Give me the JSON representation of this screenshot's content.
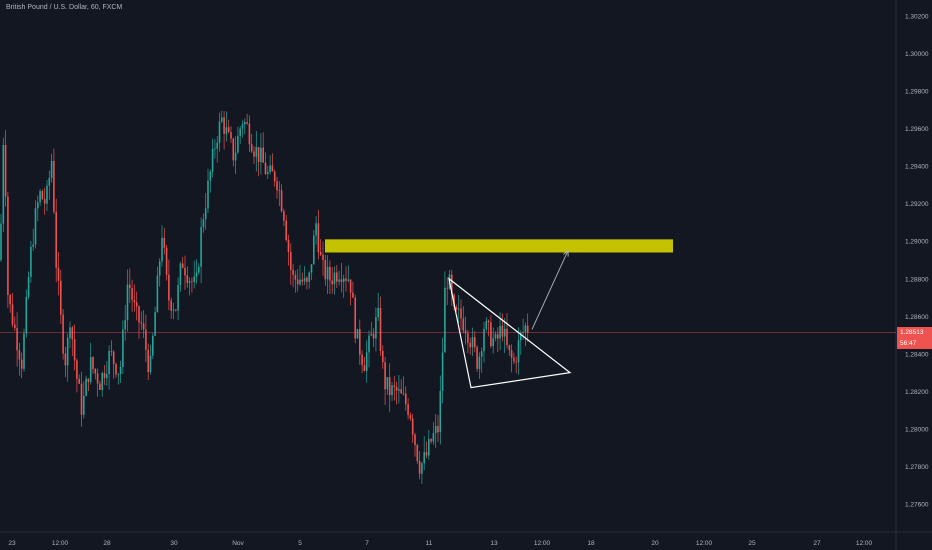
{
  "chart_data": {
    "type": "candlestick",
    "title": "British Pound / U.S. Dollar, 60, FXCM",
    "ylim": [
      1.275,
      1.3025
    ],
    "yticks": [
      "1.30200",
      "1.30000",
      "1.29800",
      "1.29600",
      "1.29400",
      "1.29200",
      "1.29000",
      "1.28800",
      "1.28600",
      "1.28400",
      "1.28200",
      "1.28000",
      "1.27800",
      "1.27600"
    ],
    "xticks": [
      "23",
      "12:00",
      "28",
      "30",
      "Nov",
      "5",
      "7",
      "11",
      "13",
      "12:00",
      "18",
      "20",
      "12:00",
      "25",
      "27",
      "12:00"
    ],
    "last_price": "1.28513",
    "countdown": "56:47",
    "colors": {
      "background": "#131722",
      "up": "#26a69a",
      "down": "#ef5350",
      "resistance_zone": "#c5c200",
      "pattern_lines": "#ffffff",
      "projection_arrow": "#b2b5be",
      "price_line": "#ef5350",
      "axis_text": "#b2b5be"
    },
    "path_keypoints": [
      [
        0,
        1.289
      ],
      [
        4,
        1.2968
      ],
      [
        8,
        1.287
      ],
      [
        14,
        1.2855
      ],
      [
        22,
        1.2835
      ],
      [
        30,
        1.289
      ],
      [
        36,
        1.2915
      ],
      [
        40,
        1.2925
      ],
      [
        46,
        1.292
      ],
      [
        52,
        1.2945
      ],
      [
        56,
        1.289
      ],
      [
        62,
        1.285
      ],
      [
        66,
        1.2835
      ],
      [
        70,
        1.286
      ],
      [
        76,
        1.283
      ],
      [
        82,
        1.281
      ],
      [
        90,
        1.2835
      ],
      [
        100,
        1.2825
      ],
      [
        110,
        1.284
      ],
      [
        120,
        1.283
      ],
      [
        128,
        1.288
      ],
      [
        136,
        1.286
      ],
      [
        142,
        1.2855
      ],
      [
        150,
        1.283
      ],
      [
        158,
        1.288
      ],
      [
        162,
        1.2905
      ],
      [
        168,
        1.287
      ],
      [
        176,
        1.2865
      ],
      [
        182,
        1.289
      ],
      [
        190,
        1.288
      ],
      [
        196,
        1.2875
      ],
      [
        202,
        1.291
      ],
      [
        210,
        1.2935
      ],
      [
        216,
        1.2955
      ],
      [
        222,
        1.2965
      ],
      [
        228,
        1.2955
      ],
      [
        234,
        1.2945
      ],
      [
        242,
        1.2965
      ],
      [
        248,
        1.296
      ],
      [
        254,
        1.295
      ],
      [
        260,
        1.2945
      ],
      [
        268,
        1.2935
      ],
      [
        276,
        1.2935
      ],
      [
        284,
        1.2915
      ],
      [
        292,
        1.288
      ],
      [
        300,
        1.288
      ],
      [
        308,
        1.2875
      ],
      [
        316,
        1.291
      ],
      [
        322,
        1.2885
      ],
      [
        330,
        1.288
      ],
      [
        340,
        1.2885
      ],
      [
        350,
        1.288
      ],
      [
        356,
        1.285
      ],
      [
        364,
        1.2835
      ],
      [
        372,
        1.285
      ],
      [
        378,
        1.286
      ],
      [
        384,
        1.2825
      ],
      [
        390,
        1.282
      ],
      [
        396,
        1.282
      ],
      [
        404,
        1.2815
      ],
      [
        410,
        1.281
      ],
      [
        416,
        1.279
      ],
      [
        420,
        1.278
      ],
      [
        426,
        1.2785
      ],
      [
        432,
        1.2795
      ],
      [
        438,
        1.28
      ],
      [
        442,
        1.283
      ],
      [
        444,
        1.287
      ],
      [
        448,
        1.2882
      ],
      [
        454,
        1.286
      ],
      [
        460,
        1.286
      ],
      [
        466,
        1.2855
      ],
      [
        472,
        1.2845
      ],
      [
        478,
        1.2835
      ],
      [
        484,
        1.2855
      ],
      [
        490,
        1.285
      ],
      [
        496,
        1.2845
      ],
      [
        502,
        1.2855
      ],
      [
        508,
        1.284
      ],
      [
        514,
        1.2835
      ],
      [
        520,
        1.2848
      ],
      [
        526,
        1.2855
      ],
      [
        530,
        1.2852
      ]
    ],
    "resistance_zone": {
      "x1": 325,
      "x2": 673,
      "y_top": 1.2901,
      "y_bottom": 1.2894
    },
    "triangle": [
      [
        449,
        1.288
      ],
      [
        570,
        1.283
      ],
      [
        471,
        1.2822
      ]
    ],
    "projection_arrow": {
      "from": [
        532,
        1.2853
      ],
      "to": [
        568,
        1.2895
      ]
    }
  }
}
